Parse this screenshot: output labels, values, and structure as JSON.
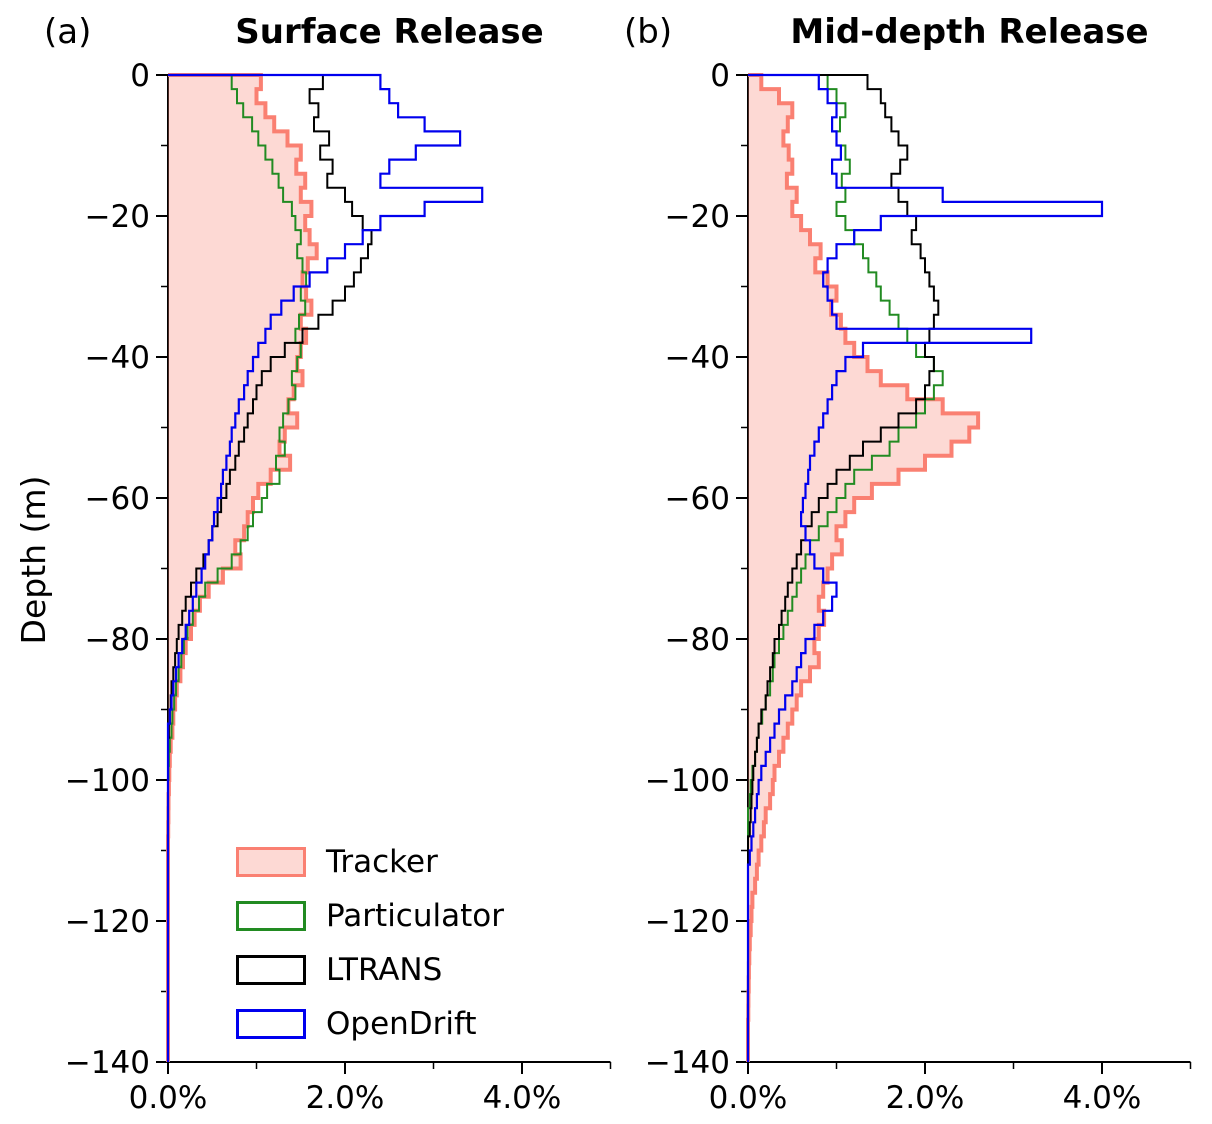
{
  "legend": {
    "items": [
      {
        "label": "Tracker",
        "edge": "#fa8072",
        "fill": "rgba(250,128,114,0.3)"
      },
      {
        "label": "Particulator",
        "edge": "#228b22",
        "fill": "none"
      },
      {
        "label": "LTRANS",
        "edge": "#000000",
        "fill": "none"
      },
      {
        "label": "OpenDrift",
        "edge": "#0000ee",
        "fill": "none"
      }
    ]
  },
  "chart_data": [
    {
      "id": "a",
      "type": "line",
      "subtype": "horizontal-step-histogram",
      "corner_label": "(a)",
      "title": "Surface Release",
      "ylabel": "Depth (m)",
      "xlabel": "",
      "xlim": [
        0,
        5
      ],
      "ylim": [
        -140,
        0
      ],
      "xticks": [
        0,
        2,
        4
      ],
      "xtick_labels": [
        "0.0%",
        "2.0%",
        "4.0%"
      ],
      "xticks_minor": [
        1,
        3,
        5
      ],
      "yticks": [
        0,
        -20,
        -40,
        -60,
        -80,
        -100,
        -120,
        -140
      ],
      "ytick_labels": [
        "0",
        "−20",
        "−40",
        "−60",
        "−80",
        "−100",
        "−120",
        "−140"
      ],
      "yticks_minor": [
        -10,
        -30,
        -50,
        -70,
        -90,
        -110,
        -130
      ],
      "bin_depth_m": 2,
      "series": [
        {
          "name": "Tracker",
          "color": "#fa8072",
          "line_width": 4,
          "fill_color": "rgba(250,128,114,0.3)",
          "values": [
            1.05,
            1.0,
            1.1,
            1.2,
            1.35,
            1.5,
            1.45,
            1.55,
            1.5,
            1.62,
            1.55,
            1.6,
            1.68,
            1.58,
            1.52,
            1.56,
            1.62,
            1.5,
            1.56,
            1.5,
            1.46,
            1.52,
            1.42,
            1.36,
            1.46,
            1.32,
            1.26,
            1.38,
            1.16,
            1.02,
            0.96,
            0.9,
            0.86,
            0.76,
            0.82,
            0.62,
            0.46,
            0.36,
            0.3,
            0.26,
            0.2,
            0.17,
            0.14,
            0.1,
            0.08,
            0.06,
            0.05,
            0.03,
            0.02,
            0.015,
            0.01,
            0.006,
            0.004,
            0.002,
            0,
            0,
            0,
            0,
            0,
            0,
            0,
            0,
            0,
            0,
            0,
            0,
            0,
            0,
            0,
            0
          ]
        },
        {
          "name": "Particulator",
          "color": "#228b22",
          "line_width": 2,
          "fill_color": "none",
          "values": [
            0.72,
            0.78,
            0.85,
            0.95,
            1.02,
            1.1,
            1.18,
            1.25,
            1.3,
            1.4,
            1.44,
            1.5,
            1.46,
            1.52,
            1.56,
            1.5,
            1.55,
            1.48,
            1.44,
            1.5,
            1.46,
            1.4,
            1.44,
            1.36,
            1.3,
            1.26,
            1.32,
            1.22,
            1.26,
            1.12,
            1.06,
            0.96,
            0.9,
            0.82,
            0.72,
            0.56,
            0.42,
            0.35,
            0.28,
            0.22,
            0.18,
            0.15,
            0.12,
            0.09,
            0.07,
            0.05,
            0.04,
            0.02,
            0.01,
            0.006,
            0,
            0,
            0,
            0,
            0,
            0,
            0,
            0,
            0,
            0,
            0,
            0,
            0,
            0,
            0,
            0,
            0,
            0,
            0,
            0
          ]
        },
        {
          "name": "LTRANS",
          "color": "#000000",
          "line_width": 2,
          "fill_color": "none",
          "values": [
            1.75,
            1.6,
            1.7,
            1.65,
            1.82,
            1.72,
            1.86,
            1.8,
            2.0,
            2.08,
            2.2,
            2.3,
            2.26,
            2.18,
            2.1,
            2.0,
            1.86,
            1.7,
            1.52,
            1.32,
            1.16,
            1.06,
            1.0,
            0.96,
            0.9,
            0.86,
            0.8,
            0.76,
            0.7,
            0.66,
            0.6,
            0.56,
            0.5,
            0.46,
            0.4,
            0.32,
            0.26,
            0.2,
            0.16,
            0.12,
            0.1,
            0.08,
            0.06,
            0.04,
            0.03,
            0.02,
            0.01,
            0,
            0,
            0,
            0,
            0,
            0,
            0,
            0,
            0,
            0,
            0,
            0,
            0,
            0,
            0,
            0,
            0,
            0,
            0,
            0,
            0,
            0,
            0
          ]
        },
        {
          "name": "OpenDrift",
          "color": "#0000ee",
          "line_width": 2.2,
          "fill_color": "none",
          "values": [
            2.4,
            2.5,
            2.6,
            2.9,
            3.3,
            2.8,
            2.5,
            2.4,
            3.55,
            2.9,
            2.4,
            2.2,
            2.0,
            1.8,
            1.6,
            1.42,
            1.28,
            1.16,
            1.1,
            1.02,
            0.96,
            0.9,
            0.86,
            0.8,
            0.76,
            0.72,
            0.7,
            0.66,
            0.62,
            0.6,
            0.56,
            0.52,
            0.5,
            0.46,
            0.42,
            0.38,
            0.32,
            0.28,
            0.24,
            0.2,
            0.16,
            0.12,
            0.09,
            0.06,
            0.04,
            0.02,
            0,
            0,
            0,
            0,
            0,
            0,
            0,
            0,
            0,
            0,
            0,
            0,
            0,
            0,
            0,
            0,
            0,
            0,
            0,
            0,
            0,
            0,
            0,
            0
          ]
        }
      ]
    },
    {
      "id": "b",
      "type": "line",
      "subtype": "horizontal-step-histogram",
      "corner_label": "(b)",
      "title": "Mid-depth Release",
      "ylabel": "",
      "xlabel": "",
      "xlim": [
        0,
        5
      ],
      "ylim": [
        -140,
        0
      ],
      "xticks": [
        0,
        2,
        4
      ],
      "xtick_labels": [
        "0.0%",
        "2.0%",
        "4.0%"
      ],
      "xticks_minor": [
        1,
        3,
        5
      ],
      "yticks": [
        0,
        -20,
        -40,
        -60,
        -80,
        -100,
        -120,
        -140
      ],
      "ytick_labels": [
        "0",
        "−20",
        "−40",
        "−60",
        "−80",
        "−100",
        "−120",
        "−140"
      ],
      "yticks_minor": [
        -10,
        -30,
        -50,
        -70,
        -90,
        -110,
        -130
      ],
      "bin_depth_m": 2,
      "series": [
        {
          "name": "Tracker",
          "color": "#fa8072",
          "line_width": 4,
          "fill_color": "rgba(250,128,114,0.3)",
          "values": [
            0.15,
            0.35,
            0.5,
            0.45,
            0.4,
            0.46,
            0.5,
            0.44,
            0.55,
            0.5,
            0.6,
            0.7,
            0.82,
            0.76,
            0.9,
            1.0,
            0.94,
            1.05,
            1.1,
            1.2,
            1.35,
            1.5,
            1.8,
            2.2,
            2.6,
            2.5,
            2.3,
            2.0,
            1.7,
            1.4,
            1.2,
            1.1,
            1.0,
            1.06,
            0.95,
            0.9,
            0.85,
            0.8,
            0.86,
            0.8,
            0.75,
            0.8,
            0.7,
            0.6,
            0.55,
            0.5,
            0.45,
            0.4,
            0.35,
            0.3,
            0.28,
            0.25,
            0.2,
            0.18,
            0.15,
            0.12,
            0.1,
            0.08,
            0.05,
            0.04,
            0.03,
            0.02,
            0.015,
            0.01,
            0.008,
            0.005,
            0.003,
            0,
            0,
            0
          ]
        },
        {
          "name": "Particulator",
          "color": "#228b22",
          "line_width": 2,
          "fill_color": "none",
          "values": [
            0.9,
            1.0,
            1.1,
            1.04,
            1.0,
            1.1,
            1.15,
            1.06,
            1.1,
            1.0,
            1.1,
            1.2,
            1.3,
            1.36,
            1.45,
            1.5,
            1.6,
            1.7,
            1.8,
            1.9,
            2.1,
            2.2,
            2.1,
            2.0,
            1.9,
            1.7,
            1.6,
            1.4,
            1.2,
            1.1,
            1.0,
            0.9,
            0.8,
            0.7,
            0.65,
            0.6,
            0.55,
            0.5,
            0.45,
            0.4,
            0.35,
            0.3,
            0.28,
            0.25,
            0.2,
            0.16,
            0.12,
            0.1,
            0.08,
            0.05,
            0.03,
            0.02,
            0,
            0,
            0,
            0,
            0,
            0,
            0,
            0,
            0,
            0,
            0,
            0,
            0,
            0,
            0,
            0,
            0,
            0
          ]
        },
        {
          "name": "LTRANS",
          "color": "#000000",
          "line_width": 2,
          "fill_color": "none",
          "values": [
            1.35,
            1.5,
            1.55,
            1.62,
            1.7,
            1.8,
            1.72,
            1.62,
            1.7,
            1.8,
            1.9,
            1.85,
            1.95,
            2.0,
            2.05,
            2.1,
            2.15,
            2.1,
            2.05,
            2.0,
            2.1,
            2.05,
            2.0,
            1.9,
            1.7,
            1.5,
            1.3,
            1.15,
            1.0,
            0.9,
            0.8,
            0.72,
            0.65,
            0.6,
            0.55,
            0.5,
            0.45,
            0.42,
            0.38,
            0.35,
            0.3,
            0.28,
            0.25,
            0.22,
            0.2,
            0.15,
            0.12,
            0.1,
            0.08,
            0.06,
            0.05,
            0.04,
            0.03,
            0.02,
            0,
            0,
            0,
            0,
            0,
            0,
            0,
            0,
            0,
            0,
            0,
            0,
            0,
            0,
            0,
            0
          ]
        },
        {
          "name": "OpenDrift",
          "color": "#0000ee",
          "line_width": 2.2,
          "fill_color": "none",
          "values": [
            0.8,
            0.9,
            1.0,
            0.95,
            1.0,
            1.05,
            0.95,
            1.0,
            2.2,
            4.0,
            1.5,
            1.2,
            1.0,
            0.9,
            0.85,
            0.9,
            0.95,
            1.0,
            3.2,
            1.3,
            1.1,
            1.0,
            0.95,
            0.9,
            0.85,
            0.8,
            0.75,
            0.7,
            0.68,
            0.65,
            0.62,
            0.6,
            0.65,
            0.7,
            0.75,
            0.85,
            1.0,
            0.95,
            0.85,
            0.75,
            0.65,
            0.6,
            0.55,
            0.5,
            0.42,
            0.35,
            0.3,
            0.25,
            0.2,
            0.15,
            0.12,
            0.1,
            0.08,
            0.06,
            0.04,
            0.02,
            0,
            0,
            0,
            0,
            0,
            0,
            0,
            0,
            0,
            0,
            0,
            0,
            0,
            0
          ]
        }
      ]
    }
  ]
}
